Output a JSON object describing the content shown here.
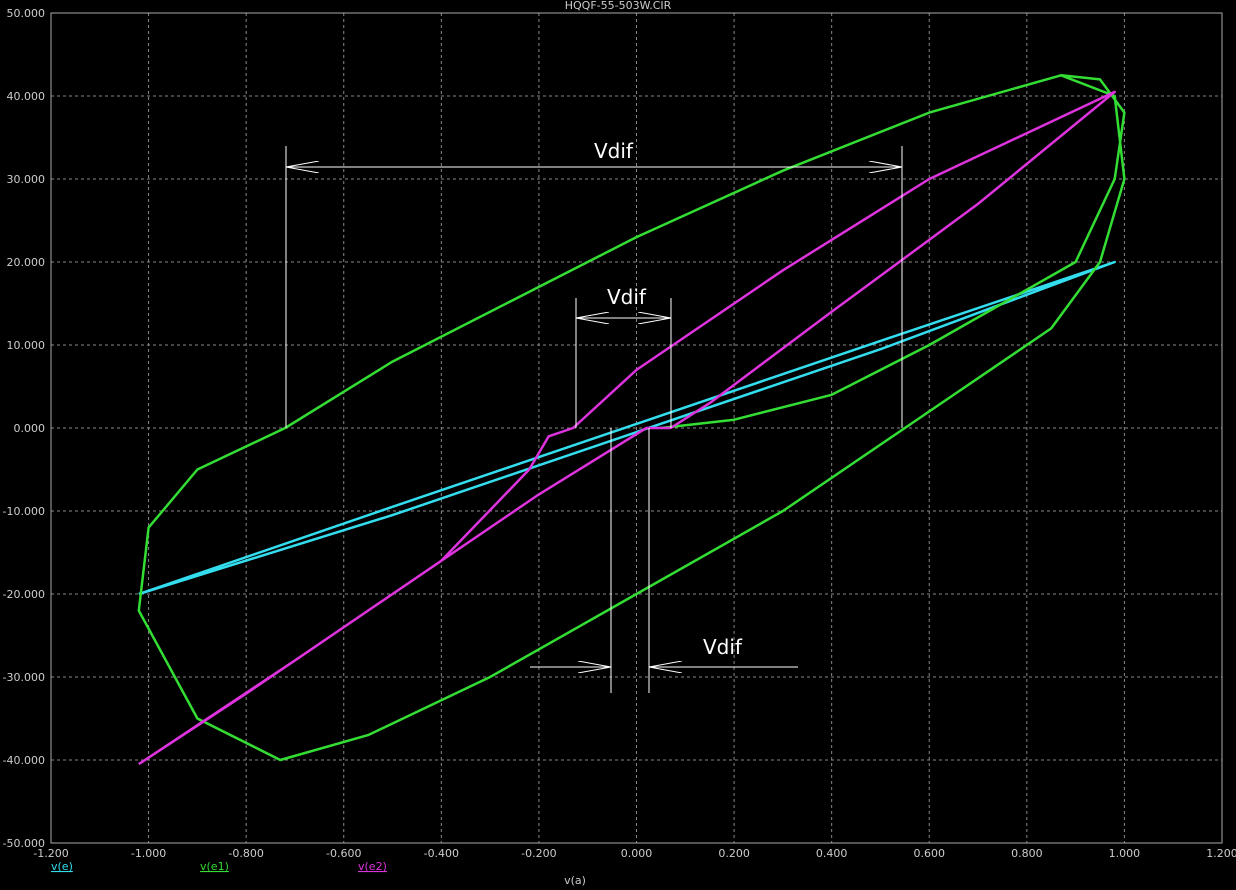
{
  "chart_data": {
    "type": "line",
    "title": "HQQF-55-503W.CIR",
    "x_label": "v(a)",
    "xlim": [
      -1.2,
      1.2
    ],
    "ylim": [
      -50,
      50
    ],
    "grid": true,
    "xticks": [
      {
        "value": -1.2,
        "label": "-1.200"
      },
      {
        "value": -1.0,
        "label": "-1.000"
      },
      {
        "value": -0.8,
        "label": "-0.800"
      },
      {
        "value": -0.6,
        "label": "-0.600"
      },
      {
        "value": -0.4,
        "label": "-0.400"
      },
      {
        "value": -0.2,
        "label": "-0.200"
      },
      {
        "value": 0,
        "label": "0.000"
      },
      {
        "value": 0.2,
        "label": "0.200"
      },
      {
        "value": 0.4,
        "label": "0.400"
      },
      {
        "value": 0.6,
        "label": "0.600"
      },
      {
        "value": 0.8,
        "label": "0.800"
      },
      {
        "value": 1.0,
        "label": "1.000"
      },
      {
        "value": 1.2,
        "label": "1.200"
      }
    ],
    "yticks": [
      {
        "value": 50,
        "label": "50.000"
      },
      {
        "value": 40,
        "label": "40.000"
      },
      {
        "value": 30,
        "label": "30.000"
      },
      {
        "value": 20,
        "label": "20.000"
      },
      {
        "value": 10,
        "label": "10.000"
      },
      {
        "value": 0,
        "label": "0.000"
      },
      {
        "value": -10,
        "label": "-10.000"
      },
      {
        "value": -20,
        "label": "-20.000"
      },
      {
        "value": -30,
        "label": "-30.000"
      },
      {
        "value": -40,
        "label": "-40.000"
      },
      {
        "value": -50,
        "label": "-50.000"
      }
    ],
    "annotations": [
      "Vdif",
      "Vdif",
      "Vdif"
    ],
    "series": [
      {
        "name": "v(e)",
        "color": "#33ddee",
        "x": [
          -1.02,
          -0.5,
          0,
          0.5,
          0.98,
          0.5,
          0,
          -0.5,
          -1.02
        ],
        "values": [
          -20,
          -9.5,
          0.5,
          10.5,
          20,
          9.5,
          -0.5,
          -10.5,
          -20
        ]
      },
      {
        "name": "v(e1)",
        "color": "#33dd33",
        "x": [
          -0.72,
          -0.5,
          -0.2,
          0,
          0.3,
          0.6,
          0.87,
          0.98,
          1.0,
          0.95,
          0.85,
          0.55,
          0.3,
          0,
          -0.3,
          -0.55,
          -0.73,
          -0.9,
          -1.02,
          -1.0,
          -0.9,
          -0.72,
          null,
          0.05,
          0.2,
          0.4,
          0.6,
          0.75,
          0.9,
          0.98,
          1.0,
          0.95,
          0.87
        ],
        "values": [
          0,
          8,
          17,
          23,
          31,
          38,
          42.5,
          40,
          30,
          20,
          12,
          0,
          -10,
          -20,
          -30,
          -37,
          -40,
          -35,
          -22,
          -12,
          -5,
          0,
          null,
          0,
          1,
          4,
          10,
          15,
          20,
          30,
          38,
          42,
          42.5
        ]
      },
      {
        "name": "v(e2)",
        "color": "#dd33dd",
        "x": [
          -1.02,
          -0.7,
          -0.4,
          -0.22,
          -0.18,
          -0.13,
          0,
          0.3,
          0.6,
          0.98,
          0.7,
          0.4,
          0.15,
          0.07,
          0.02,
          -0.2,
          -0.5,
          -0.8,
          -1.02
        ],
        "values": [
          -40.5,
          -28,
          -16,
          -5,
          -1,
          0,
          7,
          19,
          30,
          40.5,
          27,
          14,
          3,
          0,
          0,
          -8,
          -20,
          -32,
          -40.5
        ]
      }
    ]
  }
}
